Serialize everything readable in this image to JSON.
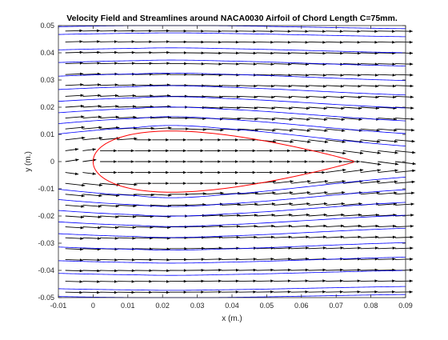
{
  "chart_data": {
    "type": "vector_field_streamlines",
    "title": "Velocity Field and Streamlines around NACA0030 Airfoil of Chord Length C=75mm.",
    "xlabel": "x (m.)",
    "ylabel": "y (m.)",
    "xlim": [
      -0.01,
      0.09
    ],
    "ylim": [
      -0.05,
      0.05
    ],
    "x_ticks": [
      -0.01,
      0,
      0.01,
      0.02,
      0.03,
      0.04,
      0.05,
      0.06,
      0.07,
      0.08,
      0.09
    ],
    "x_tick_labels": [
      "-0.01",
      "0",
      "0.01",
      "0.02",
      "0.03",
      "0.04",
      "0.05",
      "0.06",
      "0.07",
      "0.08",
      "0.09"
    ],
    "y_ticks": [
      -0.05,
      -0.04,
      -0.03,
      -0.02,
      -0.01,
      0,
      0.01,
      0.02,
      0.03,
      0.04,
      0.05
    ],
    "y_tick_labels": [
      "-0.05",
      "-0.04",
      "-0.03",
      "-0.02",
      "-0.01",
      "0",
      "0.01",
      "0.02",
      "0.03",
      "0.04",
      "0.05"
    ],
    "grid": false,
    "airfoil": {
      "profile": "NACA0030",
      "chord": 0.075,
      "thickness_ratio": 0.3,
      "leading_edge_x": 0,
      "color": "#ff0000"
    },
    "streamlines": {
      "color": "#0000ff",
      "y_start_values": [
        -0.0485,
        -0.0455,
        -0.0395,
        -0.0345,
        -0.029,
        -0.0235,
        -0.0185,
        -0.0135,
        -0.0085,
        -0.0035,
        0.0035,
        0.0085,
        0.0135,
        0.0185,
        0.0235,
        0.029,
        0.0345,
        0.0395,
        0.0455,
        0.0485
      ]
    },
    "velocity_vectors": {
      "color": "#000000",
      "x_spacing": 0.005,
      "y_spacing": 0.004
    }
  }
}
